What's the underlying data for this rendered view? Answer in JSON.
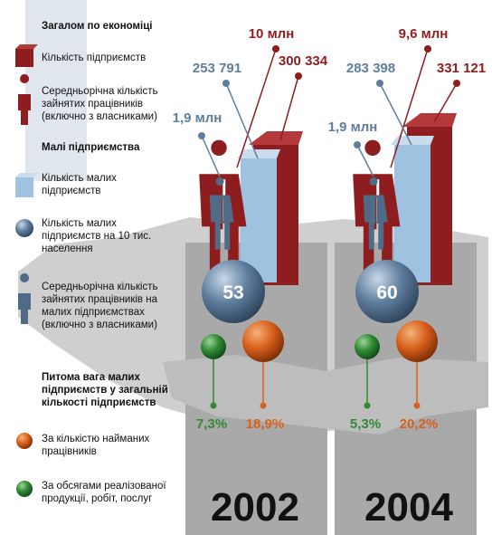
{
  "legend": [
    {
      "title": "Загалом по економіці",
      "items": [
        "Кількість підприємств",
        "Середньорічна кількість зайнятих працівників (включно з власниками)"
      ]
    },
    {
      "title": "Малі підприємства",
      "items": [
        "Кількість малих підприємств",
        "Кількість малих підприємств на 10 тис. населення",
        "Середньорічна кількість зайнятих працівників на малих підприємствах (включно з власниками)"
      ]
    },
    {
      "title": "Питома вага малих підприємств у загальній кількості підприємств",
      "items": [
        "За кількістю найманих працівників",
        "За обсягами реалізованої продукції, робіт, послуг"
      ]
    }
  ],
  "panels": [
    {
      "year": "2002",
      "employees_total": "10 млн",
      "enterprises_total": "300 334",
      "small_enterprises": "253 791",
      "small_employees": "1,9 млн",
      "small_per_10k": "53",
      "share_employees": "18,9%",
      "share_output": "7,3%"
    },
    {
      "year": "2004",
      "employees_total": "9,6 млн",
      "enterprises_total": "331 121",
      "small_enterprises": "283 398",
      "small_employees": "1,9 млн",
      "small_per_10k": "60",
      "share_employees": "20,2%",
      "share_output": "5,3%"
    }
  ]
}
